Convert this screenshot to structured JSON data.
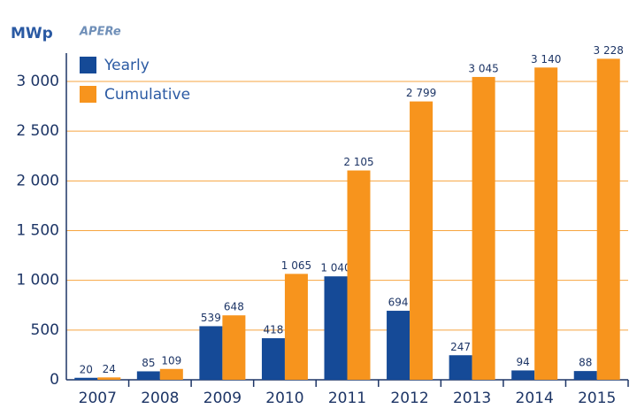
{
  "chart_data": {
    "type": "bar",
    "y_label": "MWp",
    "logo": "APERe",
    "categories": [
      "2007",
      "2008",
      "2009",
      "2010",
      "2011",
      "2012",
      "2013",
      "2014",
      "2015"
    ],
    "series": [
      {
        "name": "Yearly",
        "color": "#154a97",
        "values": [
          20,
          85,
          539,
          418,
          1040,
          694,
          247,
          94,
          88
        ],
        "value_labels": [
          "20",
          "85",
          "539",
          "418",
          "1 040",
          "694",
          "247",
          "94",
          "88"
        ]
      },
      {
        "name": "Cumulative",
        "color": "#f7941d",
        "values": [
          24,
          109,
          648,
          1065,
          2105,
          2799,
          3045,
          3140,
          3228
        ],
        "value_labels": [
          "24",
          "109",
          "648",
          "1 065",
          "2 105",
          "2 799",
          "3 045",
          "3 140",
          "3 228"
        ]
      }
    ],
    "ylim": [
      0,
      3000
    ],
    "yticks": [
      0,
      500,
      {
        "value": 1000,
        "label": "1 000"
      },
      {
        "value": 1500,
        "label": "1 500"
      },
      {
        "value": 2000,
        "label": "2 000"
      },
      {
        "value": 2500,
        "label": "2 500"
      },
      {
        "value": 3000,
        "label": "3 000"
      }
    ],
    "grid": true,
    "legend": "top-left"
  }
}
